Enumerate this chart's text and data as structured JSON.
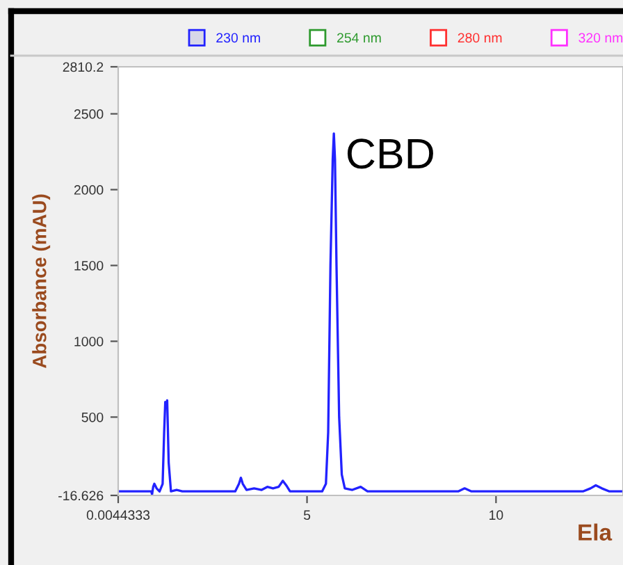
{
  "chart_data": {
    "type": "line",
    "xlabel": "Ela",
    "ylabel": "Absorbance (mAU)",
    "xlim": [
      0.0044333,
      13.36
    ],
    "xticks": [
      0.0044333,
      5,
      10
    ],
    "ylim": [
      -16.626,
      2810.2
    ],
    "yticks": [
      -16.626,
      500,
      1000,
      1500,
      2000,
      2500,
      2810.2
    ],
    "grid": false,
    "legend": "top",
    "marker": "none",
    "line_style": "solid",
    "annotations": [
      {
        "text": "CBD",
        "x": 5.71,
        "y": 2366
      }
    ],
    "series": [
      {
        "name": "230 nm",
        "color": "#2222ff",
        "x": [
          0.0044333,
          0.8,
          0.88,
          0.9,
          0.93,
          0.96,
          1.02,
          1.1,
          1.18,
          1.22,
          1.25,
          1.27,
          1.3,
          1.34,
          1.4,
          1.55,
          1.7,
          2.2,
          3.1,
          3.2,
          3.25,
          3.3,
          3.4,
          3.6,
          3.8,
          3.95,
          4.1,
          4.25,
          4.36,
          4.45,
          4.55,
          5.4,
          5.5,
          5.56,
          5.62,
          5.68,
          5.71,
          5.74,
          5.78,
          5.85,
          5.92,
          6.0,
          6.2,
          6.42,
          6.6,
          7.0,
          8.0,
          8.1,
          9.0,
          9.17,
          9.35,
          10.0,
          10.2,
          12.3,
          12.5,
          12.64,
          12.8,
          13.0,
          13.36
        ],
        "values": [
          10,
          10,
          10,
          -10,
          40,
          60,
          30,
          10,
          60,
          400,
          600,
          560,
          610,
          200,
          10,
          20,
          10,
          10,
          10,
          60,
          100,
          60,
          20,
          30,
          20,
          40,
          30,
          40,
          80,
          50,
          10,
          10,
          60,
          400,
          1500,
          2200,
          2370,
          2200,
          1500,
          500,
          120,
          30,
          20,
          40,
          10,
          10,
          10,
          10,
          10,
          30,
          10,
          10,
          10,
          10,
          30,
          50,
          30,
          10,
          10
        ]
      },
      {
        "name": "254 nm",
        "color": "#2e9a2e"
      },
      {
        "name": "280 nm",
        "color": "#ff3030"
      },
      {
        "name": "320 nm",
        "color": "#ff30ff"
      }
    ]
  }
}
